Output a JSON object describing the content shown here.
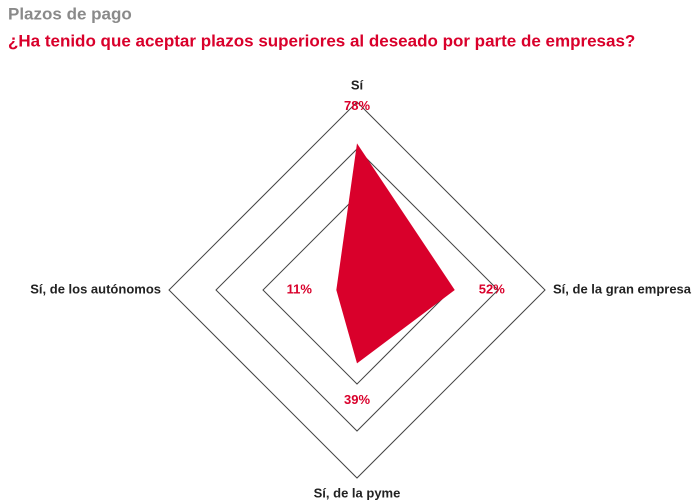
{
  "chart_data": {
    "type": "radar",
    "title": "Plazos de pago",
    "subtitle": "¿Ha tenido que aceptar plazos superiores al deseado por parte de empresas?",
    "categories": [
      "Sí",
      "Sí, de la gran empresa",
      "Sí, de la pyme",
      "Sí, de los autónomos"
    ],
    "values": [
      78,
      52,
      39,
      11
    ],
    "value_labels": [
      "78%",
      "52%",
      "39%",
      "11%"
    ],
    "color": "#d9002b",
    "rlim": [
      0,
      100
    ],
    "rticks": [
      50,
      75,
      100
    ],
    "grid": true
  }
}
